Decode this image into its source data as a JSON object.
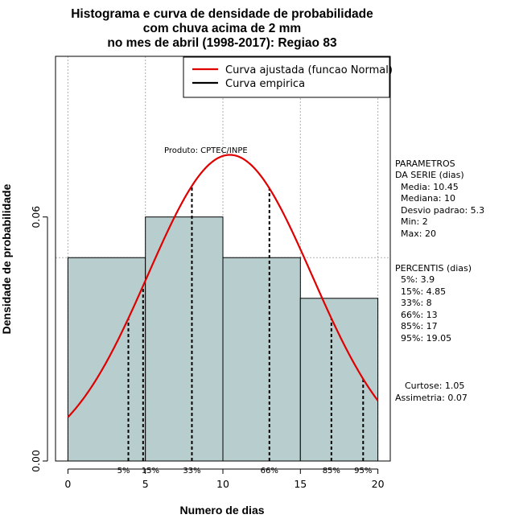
{
  "chart_data": {
    "type": "histogram",
    "title_lines": [
      "Histograma e curva de densidade de probabilidade",
      "com chuva acima de 2 mm",
      "no mes de abril (1998-2017): Regiao 83"
    ],
    "xlabel": "Numero de dias",
    "ylabel": "Densidade de probabilidade",
    "xlim": [
      -0.8,
      20.8
    ],
    "ylim": [
      0,
      0.0995
    ],
    "x_ticks": [
      0,
      5,
      10,
      15,
      20
    ],
    "y_ticks": [
      0.0,
      0.06
    ],
    "y_tick_labels": [
      "0.00",
      "0.06"
    ],
    "grid": true,
    "grid_x": [
      0,
      5,
      10,
      15,
      20
    ],
    "grid_y": [
      0.05,
      0.1
    ],
    "bars": [
      {
        "x0": 0,
        "x1": 5,
        "density": 0.05
      },
      {
        "x0": 5,
        "x1": 10,
        "density": 0.06
      },
      {
        "x0": 10,
        "x1": 15,
        "density": 0.05
      },
      {
        "x0": 15,
        "x1": 20,
        "density": 0.04
      }
    ],
    "bar_color": "#b8cece",
    "normal_curve": {
      "mean": 10.45,
      "sd": 5.3,
      "color": "#e00000",
      "xmin": 0,
      "xmax": 20
    },
    "percentile_lines": [
      {
        "label": "5%",
        "x": 3.9
      },
      {
        "label": "15%",
        "x": 4.85
      },
      {
        "label": "33%",
        "x": 8
      },
      {
        "label": "66%",
        "x": 13
      },
      {
        "label": "85%",
        "x": 17
      },
      {
        "label": "95%",
        "x": 19.05
      }
    ],
    "legend": {
      "placement": "top-right",
      "items": [
        {
          "label": "Curva ajustada (funcao Normal)",
          "color": "#e00000"
        },
        {
          "label": "Curva empirica",
          "color": "#000000"
        }
      ]
    },
    "product_note": "Produto: CPTEC/INPE",
    "parameters_title": [
      "PARAMETROS",
      "DA SERIE (dias)"
    ],
    "parameters": [
      "Media: 10.45",
      "Mediana: 10",
      "Desvio padrao: 5.3",
      "Min: 2",
      "Max: 20"
    ],
    "percentiles_title": "PERCENTIS (dias)",
    "percentiles": [
      "5%: 3.9",
      "15%: 4.85",
      "33%: 8",
      "66%: 13",
      "85%: 17",
      "95%: 19.05"
    ],
    "shape_stats": [
      "Curtose: 1.05",
      "Assimetria: 0.07"
    ]
  }
}
